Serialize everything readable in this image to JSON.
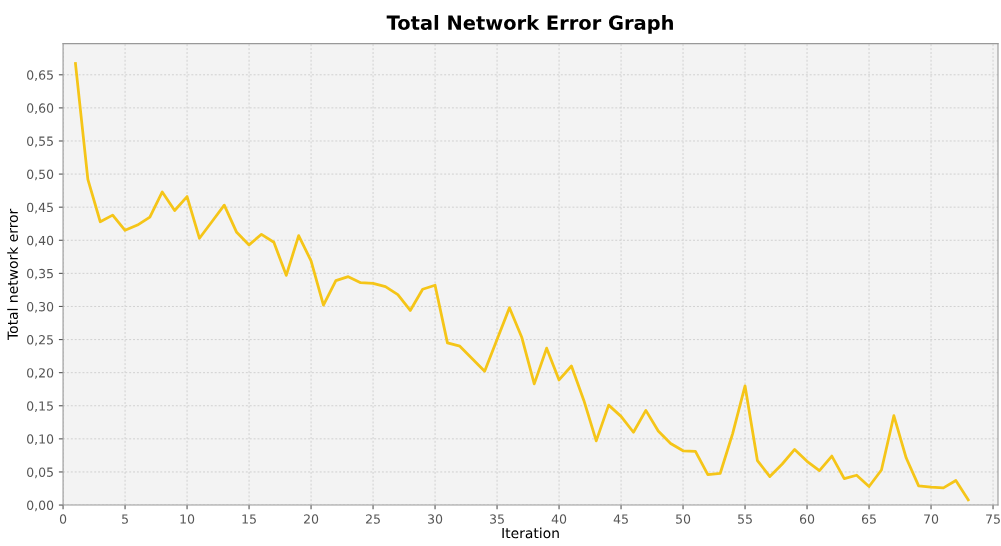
{
  "chart_data": {
    "type": "line",
    "title": "Total Network Error Graph",
    "xlabel": "Iteration",
    "ylabel": "Total network error",
    "x": [
      1,
      2,
      3,
      4,
      5,
      6,
      7,
      8,
      9,
      10,
      11,
      12,
      13,
      14,
      15,
      16,
      17,
      18,
      19,
      20,
      21,
      22,
      23,
      24,
      25,
      26,
      27,
      28,
      29,
      30,
      31,
      32,
      33,
      34,
      35,
      36,
      37,
      38,
      39,
      40,
      41,
      42,
      43,
      44,
      45,
      46,
      47,
      48,
      49,
      50,
      51,
      52,
      53,
      54,
      55,
      56,
      57,
      58,
      59,
      60,
      61,
      62,
      63,
      64,
      65,
      66,
      67,
      68,
      69,
      70,
      71,
      72,
      73
    ],
    "series": [
      {
        "color": "#f5c518",
        "values": [
          0.667,
          0.492,
          0.428,
          0.438,
          0.415,
          0.423,
          0.435,
          0.473,
          0.445,
          0.466,
          0.403,
          0.428,
          0.453,
          0.412,
          0.393,
          0.409,
          0.397,
          0.347,
          0.407,
          0.369,
          0.302,
          0.339,
          0.345,
          0.336,
          0.335,
          0.33,
          0.318,
          0.294,
          0.326,
          0.332,
          0.245,
          0.24,
          0.221,
          0.202,
          0.25,
          0.298,
          0.253,
          0.183,
          0.237,
          0.189,
          0.21,
          0.158,
          0.097,
          0.151,
          0.134,
          0.11,
          0.143,
          0.112,
          0.093,
          0.082,
          0.081,
          0.046,
          0.048,
          0.108,
          0.18,
          0.067,
          0.043,
          0.062,
          0.084,
          0.066,
          0.052,
          0.074,
          0.04,
          0.045,
          0.028,
          0.053,
          0.135,
          0.071,
          0.029,
          0.027,
          0.026,
          0.037,
          0.008
        ]
      }
    ],
    "xlim": [
      0,
      75.4
    ],
    "xticks": [
      0,
      5,
      10,
      15,
      20,
      25,
      30,
      35,
      40,
      45,
      50,
      55,
      60,
      65,
      70,
      75
    ],
    "ylim": [
      0,
      0.697
    ],
    "yticks": [
      {
        "value": 0,
        "label": "0,00"
      },
      {
        "value": 0.05,
        "label": "0,05"
      },
      {
        "value": 0.1,
        "label": "0,10"
      },
      {
        "value": 0.15,
        "label": "0,15"
      },
      {
        "value": 0.2,
        "label": "0,20"
      },
      {
        "value": 0.25,
        "label": "0,25"
      },
      {
        "value": 0.3,
        "label": "0,30"
      },
      {
        "value": 0.35,
        "label": "0,35"
      },
      {
        "value": 0.4,
        "label": "0,40"
      },
      {
        "value": 0.45,
        "label": "0,45"
      },
      {
        "value": 0.5,
        "label": "0,50"
      },
      {
        "value": 0.55,
        "label": "0,55"
      },
      {
        "value": 0.6,
        "label": "0,60"
      },
      {
        "value": 0.65,
        "label": "0,65"
      }
    ],
    "grid": true,
    "marker": "none",
    "line_style": "solid"
  }
}
